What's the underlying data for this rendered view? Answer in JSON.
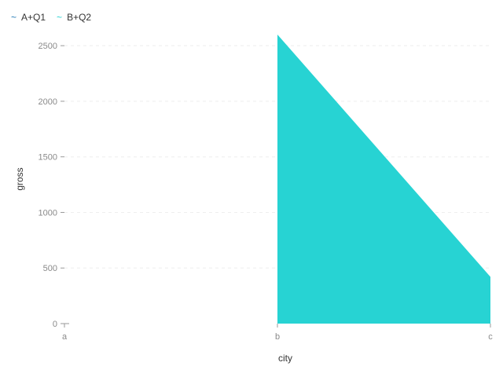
{
  "chart_data": {
    "type": "area",
    "categories": [
      "a",
      "b",
      "c"
    ],
    "series": [
      {
        "name": "A+Q1",
        "color": "#1f77b4",
        "values": [
          null,
          null,
          null
        ]
      },
      {
        "name": "B+Q2",
        "color": "#27d3d3",
        "values": [
          null,
          2600,
          420
        ]
      }
    ],
    "xlabel": "city",
    "ylabel": "gross",
    "ylim": [
      0,
      2600
    ],
    "yticks": [
      0,
      500,
      1000,
      1500,
      2000,
      2500
    ],
    "grid": true,
    "legend": "top-left"
  }
}
